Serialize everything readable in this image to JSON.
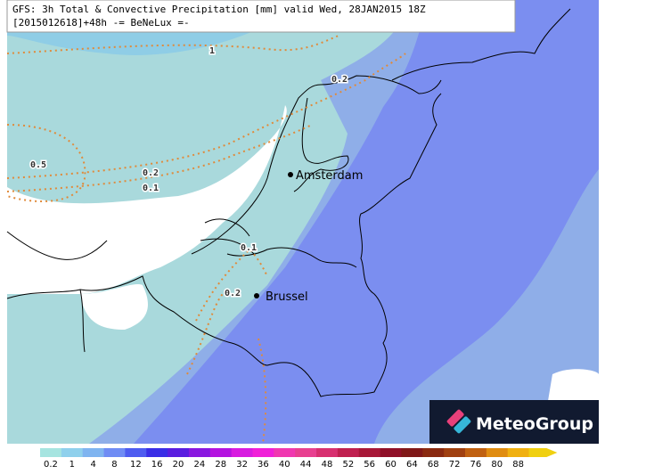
{
  "header": {
    "line1": "GFS: 3h Total & Convective Precipitation [mm] valid Wed, 28JAN2015 18Z",
    "line2": "[2015012618]+48h -= BeNeLux =-"
  },
  "cities": [
    {
      "label": "Amsterdam"
    },
    {
      "label": "Brussel"
    }
  ],
  "contours": [
    {
      "label": "1"
    },
    {
      "label": "0.2"
    },
    {
      "label": "0.5"
    },
    {
      "label": "0.2"
    },
    {
      "label": "0.1"
    },
    {
      "label": "0.1"
    },
    {
      "label": "0.2"
    }
  ],
  "logo": "MeteoGroup",
  "colorbar": {
    "labels": [
      "0.2",
      "1",
      "4",
      "8",
      "12",
      "16",
      "20",
      "24",
      "28",
      "32",
      "36",
      "40",
      "44",
      "48",
      "52",
      "56",
      "60",
      "64",
      "68",
      "72",
      "76",
      "80",
      "88"
    ],
    "colors": [
      "#a6e4e0",
      "#8fd0ec",
      "#7fb4f0",
      "#6f8cf4",
      "#4e5cf0",
      "#3a2ee6",
      "#5a1ee0",
      "#8a18e0",
      "#b414e0",
      "#d81ce0",
      "#f020d8",
      "#f038b0",
      "#e84090",
      "#d83070",
      "#c02050",
      "#a81838",
      "#901028",
      "#801818",
      "#8a2a10",
      "#a04010",
      "#c06010",
      "#e08c10",
      "#f0b010",
      "#f0d010"
    ]
  }
}
